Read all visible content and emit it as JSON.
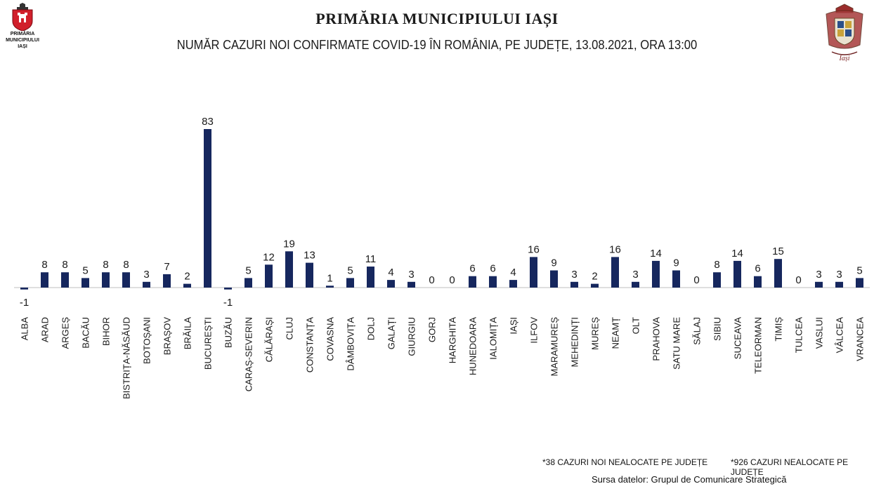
{
  "header": {
    "logo_left_text": "PRIMĂRIA\nMUNICIPIULUI\nIAȘI",
    "logo_right_text": "Iași",
    "title": "PRIMĂRIA MUNICIPIULUI IAȘI",
    "subtitle": "NUMĂR CAZURI NOI CONFIRMATE COVID-19 ÎN ROMÂNIA, PE JUDEȚE, 13.08.2021, ORA 13:00"
  },
  "colors": {
    "bar": "#16275e",
    "axis": "#bfbfbf",
    "text": "#1a1a1a"
  },
  "chart_data": {
    "type": "bar",
    "categories": [
      "ALBA",
      "ARAD",
      "ARGEȘ",
      "BACĂU",
      "BIHOR",
      "BISTRIȚA-NĂSĂUD",
      "BOTOȘANI",
      "BRAȘOV",
      "BRĂILA",
      "BUCUREȘTI",
      "BUZĂU",
      "CARAȘ-SEVERIN",
      "CĂLĂRAȘI",
      "CLUJ",
      "CONSTANȚA",
      "COVASNA",
      "DÂMBOVIȚA",
      "DOLJ",
      "GALAȚI",
      "GIURGIU",
      "GORJ",
      "HARGHITA",
      "HUNEDOARA",
      "IALOMIȚA",
      "IAȘI",
      "ILFOV",
      "MARAMUREȘ",
      "MEHEDINȚI",
      "MUREȘ",
      "NEAMȚ",
      "OLT",
      "PRAHOVA",
      "SATU MARE",
      "SĂLAJ",
      "SIBIU",
      "SUCEAVA",
      "TELEORMAN",
      "TIMIȘ",
      "TULCEA",
      "VASLUI",
      "VÂLCEA",
      "VRANCEA"
    ],
    "values": [
      -1,
      8,
      8,
      5,
      8,
      8,
      3,
      7,
      2,
      83,
      -1,
      5,
      12,
      19,
      13,
      1,
      5,
      11,
      4,
      3,
      0,
      0,
      6,
      6,
      4,
      16,
      9,
      3,
      2,
      16,
      3,
      14,
      9,
      0,
      8,
      14,
      6,
      15,
      0,
      3,
      3,
      5
    ],
    "data_labels": true,
    "grid": false,
    "legend": "none"
  },
  "footer": {
    "note_left": "*38  CAZURI NOI NEALOCATE PE JUDEȚE",
    "note_right": "*926  CAZURI NEALOCATE PE JUDEȚE",
    "source": "Sursa datelor: Grupul de Comunicare Strategică"
  }
}
